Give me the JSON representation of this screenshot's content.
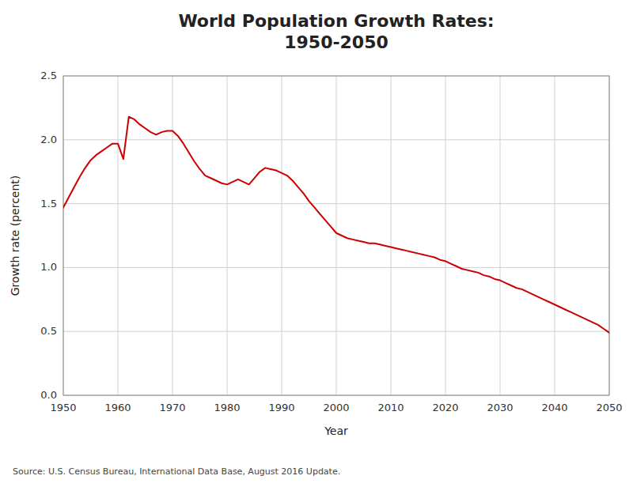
{
  "chart_data": {
    "type": "line",
    "title": "World Population Growth Rates:\n1950-2050",
    "x_label": "Year",
    "y_label": "Growth rate (percent)",
    "annotations": [
      "Source: U.S. Census Bureau, International Data Base, August 2016 Update."
    ],
    "color": "#cc0000",
    "grid": true,
    "xlim": [
      1950,
      2050
    ],
    "ylim": [
      0.0,
      2.5
    ],
    "xticks": [
      1950,
      1960,
      1970,
      1980,
      1990,
      2000,
      2010,
      2020,
      2030,
      2040,
      2050
    ],
    "yticks": [
      {
        "value": 0.0,
        "label": "0.0"
      },
      0.5,
      {
        "value": 1.0,
        "label": "1.0"
      },
      1.5,
      {
        "value": 2.0,
        "label": "2.0"
      },
      2.5
    ],
    "x": [
      1950,
      1951,
      1952,
      1953,
      1954,
      1955,
      1956,
      1957,
      1958,
      1959,
      1960,
      1961,
      1962,
      1963,
      1964,
      1965,
      1966,
      1967,
      1968,
      1969,
      1970,
      1971,
      1972,
      1973,
      1974,
      1975,
      1976,
      1977,
      1978,
      1979,
      1980,
      1981,
      1982,
      1983,
      1984,
      1985,
      1986,
      1987,
      1988,
      1989,
      1990,
      1991,
      1992,
      1993,
      1994,
      1995,
      1996,
      1997,
      1998,
      1999,
      2000,
      2001,
      2002,
      2003,
      2004,
      2005,
      2006,
      2007,
      2008,
      2009,
      2010,
      2011,
      2012,
      2013,
      2014,
      2015,
      2016,
      2017,
      2018,
      2019,
      2020,
      2021,
      2022,
      2023,
      2024,
      2025,
      2026,
      2027,
      2028,
      2029,
      2030,
      2031,
      2032,
      2033,
      2034,
      2035,
      2036,
      2037,
      2038,
      2039,
      2040,
      2041,
      2042,
      2043,
      2044,
      2045,
      2046,
      2047,
      2048,
      2049,
      2050
    ],
    "values": [
      1.47,
      1.55,
      1.63,
      1.71,
      1.78,
      1.84,
      1.88,
      1.91,
      1.94,
      1.97,
      1.97,
      1.85,
      2.18,
      2.16,
      2.12,
      2.09,
      2.06,
      2.04,
      2.06,
      2.07,
      2.07,
      2.03,
      1.97,
      1.9,
      1.83,
      1.77,
      1.72,
      1.7,
      1.68,
      1.66,
      1.65,
      1.67,
      1.69,
      1.67,
      1.65,
      1.7,
      1.75,
      1.78,
      1.77,
      1.76,
      1.74,
      1.72,
      1.68,
      1.63,
      1.58,
      1.52,
      1.47,
      1.42,
      1.37,
      1.32,
      1.27,
      1.25,
      1.23,
      1.22,
      1.21,
      1.2,
      1.19,
      1.19,
      1.18,
      1.17,
      1.16,
      1.15,
      1.14,
      1.13,
      1.12,
      1.11,
      1.1,
      1.09,
      1.08,
      1.06,
      1.05,
      1.03,
      1.01,
      0.99,
      0.98,
      0.97,
      0.96,
      0.94,
      0.93,
      0.91,
      0.9,
      0.88,
      0.86,
      0.84,
      0.83,
      0.81,
      0.79,
      0.77,
      0.75,
      0.73,
      0.71,
      0.69,
      0.67,
      0.65,
      0.63,
      0.61,
      0.59,
      0.57,
      0.55,
      0.52,
      0.49
    ]
  }
}
